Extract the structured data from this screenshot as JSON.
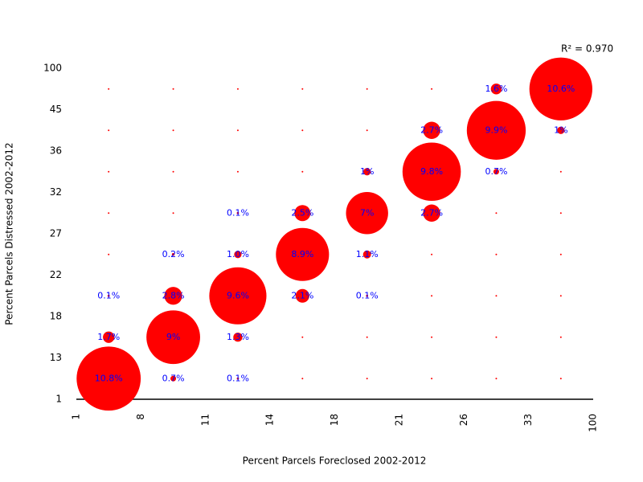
{
  "chart_data": {
    "type": "bubble",
    "annotation": "R² = 0.970",
    "xlabel": "Percent Parcels Foreclosed 2002-2012",
    "ylabel": "Percent Parcels Distressed 2002-2012",
    "xticks": [
      1,
      8,
      11,
      14,
      18,
      21,
      26,
      33,
      100
    ],
    "yticks": [
      1,
      13,
      18,
      22,
      27,
      32,
      36,
      45,
      100
    ],
    "color": "#ff0000",
    "label_color": "#0000ff",
    "values": [
      [
        10.8,
        0.7,
        0.1,
        0,
        0,
        0,
        0,
        0
      ],
      [
        1.7,
        9,
        1.3,
        0,
        0,
        0,
        0,
        0
      ],
      [
        0.1,
        2.8,
        9.6,
        2.1,
        0.1,
        0,
        0,
        0
      ],
      [
        0,
        0.2,
        1.0,
        8.9,
        1.1,
        0,
        0,
        0
      ],
      [
        0,
        0,
        0.1,
        2.5,
        7,
        2.7,
        0,
        0
      ],
      [
        0,
        0,
        0,
        0,
        1,
        9.8,
        0.7,
        0
      ],
      [
        0,
        0,
        0,
        0,
        0,
        2.7,
        9.9,
        1
      ],
      [
        0,
        0,
        0,
        0,
        0,
        0,
        1.6,
        10.6
      ]
    ],
    "value_labels": [
      [
        "10.8%",
        "0.7%",
        "0.1%",
        null,
        null,
        null,
        null,
        null
      ],
      [
        "1.7%",
        "9%",
        "1.3%",
        null,
        null,
        null,
        null,
        null
      ],
      [
        "0.1%",
        "2.8%",
        "9.6%",
        "2.1%",
        "0.1%",
        null,
        null,
        null
      ],
      [
        null,
        "0.2%",
        "1.0%",
        "8.9%",
        "1.1%",
        null,
        null,
        null
      ],
      [
        null,
        null,
        "0.1%",
        "2.5%",
        "7%",
        "2.7%",
        null,
        null
      ],
      [
        null,
        null,
        null,
        null,
        "1%",
        "9.8%",
        "0.7%",
        null
      ],
      [
        null,
        null,
        null,
        null,
        null,
        "2.7%",
        "9.9%",
        "1%"
      ],
      [
        null,
        null,
        null,
        null,
        null,
        null,
        "1.6%",
        "10.6%"
      ]
    ]
  }
}
